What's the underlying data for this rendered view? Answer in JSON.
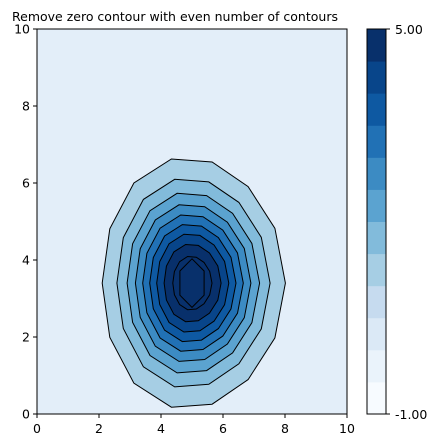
{
  "chart_data": {
    "type": "contour",
    "title": "Remove zero contour with even number of contours",
    "xlabel": "",
    "ylabel": "",
    "xlim": [
      0,
      10
    ],
    "ylim": [
      0,
      10
    ],
    "x_ticks": [
      "0",
      "2",
      "4",
      "6",
      "8",
      "10"
    ],
    "y_ticks": [
      "0",
      "2",
      "4",
      "6",
      "8",
      "10"
    ],
    "grid": false,
    "colormap": "Blues",
    "peak": {
      "x": 5,
      "y": 3.4,
      "value": 5.0
    },
    "contour_levels": [
      0.5,
      1.0,
      1.5,
      2.0,
      2.5,
      3.0,
      3.5,
      4.0,
      4.5
    ],
    "contour_line_color": "#000000",
    "background_fill": "#e3eef9",
    "colorbar": {
      "min_label": "-1.00",
      "max_label": "5.00",
      "min": -1.0,
      "max": 5.0,
      "bands": 12,
      "colors": [
        "#f7fbff",
        "#eaf3fb",
        "#dbe9f6",
        "#c6dbef",
        "#a6cee4",
        "#82bbdb",
        "#5ba3d0",
        "#3c8bc3",
        "#2171b5",
        "#0e59a2",
        "#08458a",
        "#08306b"
      ]
    }
  }
}
